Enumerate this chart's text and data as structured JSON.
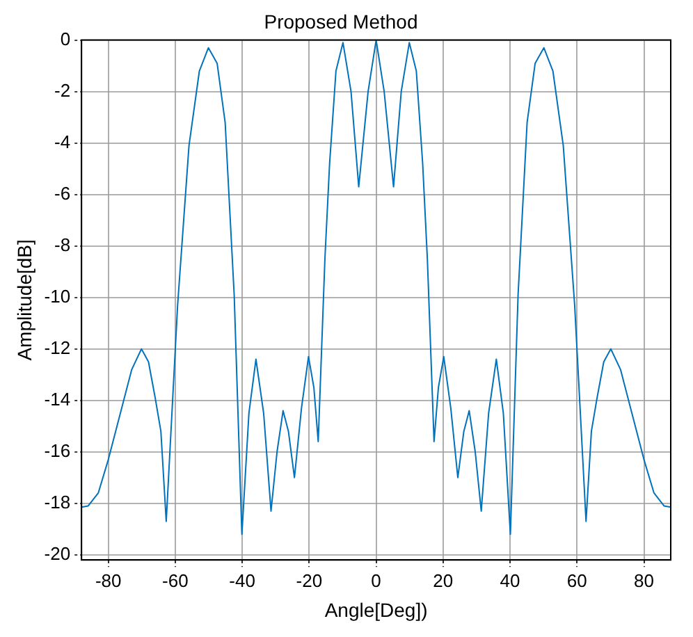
{
  "chart_data": {
    "type": "line",
    "title": "Proposed Method",
    "xlabel": "Angle[Deg])",
    "ylabel": "Amplitude[dB]",
    "x": [
      -88,
      -86,
      -83,
      -80,
      -76.2,
      -73,
      -70.1,
      -68,
      -66,
      -64.3,
      -62.7,
      -59.3,
      -55.9,
      -52.8,
      -50.1,
      -47.5,
      -45.1,
      -42.4,
      -40.1,
      -38,
      -35.9,
      -33.6,
      -31.4,
      -29.6,
      -27.8,
      -26.2,
      -24.4,
      -22.3,
      -20.2,
      -18.6,
      -17.3,
      -15.3,
      -13.9,
      -12,
      -9.9,
      -7.5,
      -5.2,
      -2.4,
      0,
      2.4,
      5.2,
      7.5,
      9.9,
      12,
      13.9,
      15.3,
      17.3,
      18.6,
      20.2,
      22.3,
      24.4,
      26.2,
      27.8,
      29.6,
      31.4,
      33.6,
      35.9,
      38,
      40.1,
      42.4,
      45.1,
      47.5,
      50.1,
      52.8,
      55.9,
      59.3,
      62.7,
      64.3,
      66,
      68,
      70.1,
      73,
      76.2,
      80,
      83,
      86,
      88
    ],
    "series": [
      {
        "color": "#0072bd",
        "values": [
          -18.15,
          -18.1,
          -17.6,
          -16.3,
          -14.4,
          -12.8,
          -12.0,
          -12.5,
          -13.9,
          -15.2,
          -18.7,
          -10.3,
          -4.1,
          -1.2,
          -0.3,
          -0.9,
          -3.2,
          -9.9,
          -19.2,
          -14.5,
          -12.4,
          -14.5,
          -18.3,
          -16.0,
          -14.4,
          -15.2,
          -17.0,
          -14.3,
          -12.3,
          -13.5,
          -15.6,
          -8.5,
          -4.8,
          -1.2,
          -0.1,
          -2.0,
          -5.7,
          -2.0,
          0,
          -2.0,
          -5.7,
          -2.0,
          -0.1,
          -1.2,
          -4.8,
          -8.5,
          -15.6,
          -13.5,
          -12.3,
          -14.3,
          -17.0,
          -15.2,
          -14.4,
          -16.0,
          -18.3,
          -14.5,
          -12.4,
          -14.5,
          -19.2,
          -9.9,
          -3.2,
          -0.9,
          -0.3,
          -1.2,
          -4.1,
          -10.3,
          -18.7,
          -15.2,
          -13.9,
          -12.5,
          -12.0,
          -12.8,
          -14.4,
          -16.3,
          -17.6,
          -18.1,
          -18.15
        ]
      }
    ],
    "xlim": [
      -88,
      88
    ],
    "xticks": [
      -80,
      -60,
      -40,
      -20,
      0,
      20,
      40,
      60,
      80
    ],
    "ylim": [
      -20.2,
      0
    ],
    "yticks": [
      0,
      -2,
      -4,
      -6,
      -8,
      -10,
      -12,
      -14,
      -16,
      -18,
      -20
    ],
    "grid": true,
    "legend": false,
    "marker": "none",
    "line_style": "solid"
  }
}
